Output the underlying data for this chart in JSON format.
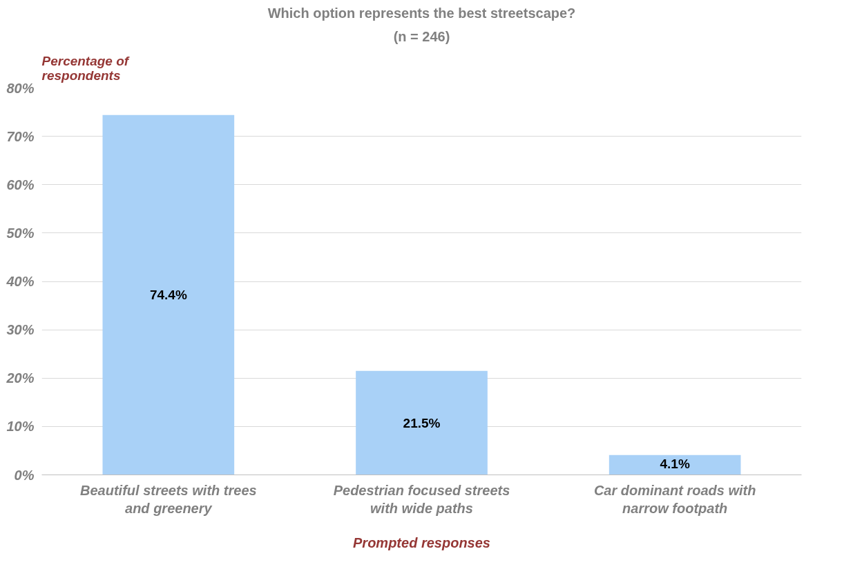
{
  "chart_data": {
    "type": "bar",
    "title": "Which option represents the best streetscape?",
    "subtitle": "(n = 246)",
    "ylabel": "Percentage of respondents",
    "xlabel": "Prompted responses",
    "categories": [
      "Beautiful streets with trees and greenery",
      "Pedestrian focused streets with wide paths",
      "Car dominant roads with narrow footpath"
    ],
    "values": [
      74.4,
      21.5,
      4.1
    ],
    "color": "#a9d1f7",
    "value_labels": [
      "74.4%",
      "21.5%",
      "4.1%"
    ],
    "ylim": [
      0,
      80
    ],
    "yticks": [
      {
        "value": 0,
        "label": "0%"
      },
      {
        "value": 10,
        "label": "10%"
      },
      {
        "value": 20,
        "label": "20%"
      },
      {
        "value": 30,
        "label": "30%"
      },
      {
        "value": 40,
        "label": "40%"
      },
      {
        "value": 50,
        "label": "50%"
      },
      {
        "value": 60,
        "label": "60%"
      },
      {
        "value": 70,
        "label": "70%"
      },
      {
        "value": 80,
        "label": "80%"
      }
    ],
    "grid": "y"
  }
}
